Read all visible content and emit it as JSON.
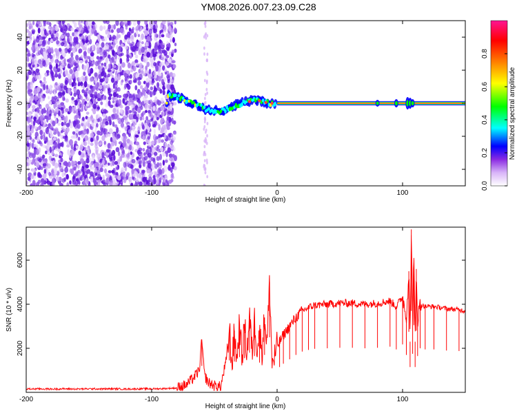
{
  "title": "YM08.2026.007.23.09.C28",
  "chart_data": [
    {
      "type": "heatmap",
      "title": "YM08.2026.007.23.09.C28",
      "xlabel": "Height of straight line (km)",
      "ylabel": "Frequency (Hz)",
      "xlim": [
        -200,
        150
      ],
      "ylim": [
        -50,
        50
      ],
      "x_ticks": [
        -200,
        -100,
        0,
        100
      ],
      "x_tick_labels": [
        "-200",
        "-100",
        "0",
        "100"
      ],
      "y_ticks": [
        -40,
        -20,
        0,
        20,
        40
      ],
      "y_tick_labels": [
        "-40",
        "-20",
        "0",
        "20",
        "40"
      ],
      "grid": false,
      "colorbar": {
        "label": "Normalized spectral amplitude",
        "range": [
          0,
          1
        ],
        "ticks": [
          0,
          0.2,
          0.4,
          0.6,
          0.8
        ],
        "tick_labels": [
          "0.0",
          "0.2",
          "0.4",
          "0.6",
          "0.8"
        ],
        "colors": [
          "#ffffff",
          "#d8b4f8",
          "#8a2be2",
          "#0000ff",
          "#00ffff",
          "#00ff00",
          "#ffff00",
          "#ff7f00",
          "#ff0000",
          "#ff1493"
        ]
      },
      "features": {
        "noise_region_x": [
          -200,
          -85
        ],
        "noise_stripe_x": -57,
        "carrier_line_x": [
          0,
          150
        ],
        "carrier_freq": 0,
        "transition_track": [
          [
            -87,
            5
          ],
          [
            -75,
            3
          ],
          [
            -65,
            -1
          ],
          [
            -55,
            -4
          ],
          [
            -45,
            -5
          ],
          [
            -35,
            -2
          ],
          [
            -25,
            1
          ],
          [
            -15,
            2
          ],
          [
            -5,
            0
          ]
        ]
      }
    },
    {
      "type": "line",
      "xlabel": "Height of straight line (km)",
      "ylabel": "SNR (10 * v/v)",
      "xlim": [
        -200,
        150
      ],
      "ylim": [
        0,
        7500
      ],
      "x_ticks": [
        -200,
        -100,
        0,
        100
      ],
      "x_tick_labels": [
        "-200",
        "-100",
        "0",
        "100"
      ],
      "y_ticks": [
        2000,
        4000,
        6000
      ],
      "y_tick_labels": [
        "2000",
        "4000",
        "6000"
      ],
      "grid": false,
      "color": "#ff0000",
      "series": [
        {
          "x": [
            -200,
            -190,
            -180,
            -170,
            -160,
            -150,
            -140,
            -130,
            -120,
            -110,
            -100,
            -90,
            -80,
            -72,
            -66,
            -62,
            -60,
            -58,
            -55,
            -50,
            -45,
            -40,
            -38,
            -36,
            -34,
            -32,
            -30,
            -28,
            -26,
            -24,
            -22,
            -20,
            -18,
            -16,
            -14,
            -12,
            -10,
            -8,
            -6,
            -4,
            -2,
            0,
            2,
            5,
            10,
            15,
            20,
            25,
            30,
            40,
            50,
            60,
            70,
            80,
            90,
            95,
            100,
            103,
            105,
            106,
            107,
            108,
            109,
            110,
            111,
            112,
            114,
            118,
            125,
            135,
            145,
            150
          ],
          "values": [
            150,
            160,
            150,
            160,
            150,
            160,
            155,
            160,
            150,
            160,
            160,
            170,
            200,
            350,
            700,
            1000,
            2400,
            800,
            450,
            300,
            250,
            1600,
            2900,
            1200,
            2800,
            1400,
            3200,
            1500,
            3100,
            1700,
            3600,
            1800,
            3300,
            2100,
            2700,
            1900,
            3400,
            2200,
            5000,
            1300,
            1600,
            2100,
            2300,
            2600,
            3000,
            3400,
            3700,
            3850,
            3950,
            4000,
            4050,
            4050,
            4000,
            4050,
            4150,
            3900,
            4350,
            3400,
            5500,
            2300,
            7400,
            3500,
            6100,
            2300,
            5600,
            3300,
            4000,
            3900,
            3900,
            3800,
            3750,
            3700
          ]
        }
      ]
    }
  ]
}
